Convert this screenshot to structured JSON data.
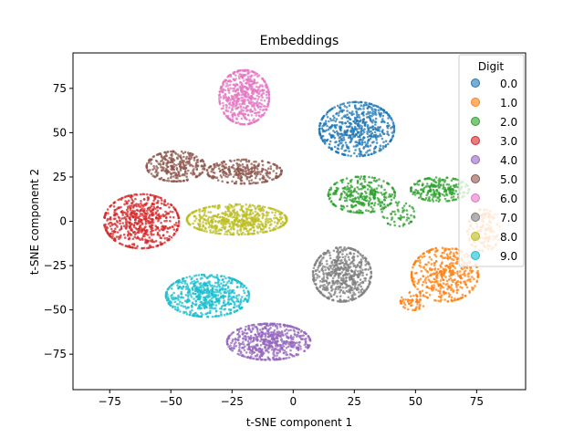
{
  "chart_data": {
    "type": "scatter",
    "title": "Embeddings",
    "xlabel": "t-SNE component 1",
    "ylabel": "t-SNE component 2",
    "xlim": [
      -90,
      95
    ],
    "ylim": [
      -95,
      95
    ],
    "xticks": [
      -75,
      -50,
      -25,
      0,
      25,
      50,
      75
    ],
    "yticks": [
      -75,
      -50,
      -25,
      0,
      25,
      50,
      75
    ],
    "grid": false,
    "legend": {
      "title": "Digit",
      "placement": "top-right",
      "entries": [
        "0.0",
        "1.0",
        "2.0",
        "3.0",
        "4.0",
        "5.0",
        "6.0",
        "7.0",
        "8.0",
        "9.0"
      ]
    },
    "series": [
      {
        "name": "0.0",
        "color": "#1f77b4",
        "clusters": [
          {
            "cx": 26,
            "cy": 52,
            "sx": 9,
            "sy": 9,
            "n": 600
          }
        ]
      },
      {
        "name": "1.0",
        "color": "#ff7f0e",
        "clusters": [
          {
            "cx": 62,
            "cy": -30,
            "sx": 8,
            "sy": 9,
            "n": 420
          },
          {
            "cx": 78,
            "cy": -5,
            "sx": 4,
            "sy": 7,
            "n": 130
          },
          {
            "cx": 49,
            "cy": -45,
            "sx": 3,
            "sy": 3,
            "n": 60
          }
        ]
      },
      {
        "name": "2.0",
        "color": "#2ca02c",
        "clusters": [
          {
            "cx": 28,
            "cy": 15,
            "sx": 8,
            "sy": 6,
            "n": 320
          },
          {
            "cx": 60,
            "cy": 18,
            "sx": 7,
            "sy": 4,
            "n": 240
          },
          {
            "cx": 43,
            "cy": 4,
            "sx": 4,
            "sy": 4,
            "n": 60
          }
        ]
      },
      {
        "name": "3.0",
        "color": "#d62728",
        "clusters": [
          {
            "cx": -62,
            "cy": 0,
            "sx": 9,
            "sy": 9,
            "n": 620
          }
        ]
      },
      {
        "name": "4.0",
        "color": "#9467bd",
        "clusters": [
          {
            "cx": -10,
            "cy": -68,
            "sx": 10,
            "sy": 6,
            "n": 620
          }
        ]
      },
      {
        "name": "5.0",
        "color": "#8c564b",
        "clusters": [
          {
            "cx": -48,
            "cy": 31,
            "sx": 7,
            "sy": 5,
            "n": 300
          },
          {
            "cx": -20,
            "cy": 28,
            "sx": 9,
            "sy": 4,
            "n": 300
          }
        ]
      },
      {
        "name": "6.0",
        "color": "#e377c2",
        "clusters": [
          {
            "cx": -20,
            "cy": 70,
            "sx": 6,
            "sy": 9,
            "n": 560
          }
        ]
      },
      {
        "name": "7.0",
        "color": "#7f7f7f",
        "clusters": [
          {
            "cx": 20,
            "cy": -30,
            "sx": 7,
            "sy": 9,
            "n": 580
          }
        ]
      },
      {
        "name": "8.0",
        "color": "#bcbd22",
        "clusters": [
          {
            "cx": -23,
            "cy": 1,
            "sx": 12,
            "sy": 5,
            "n": 620
          }
        ]
      },
      {
        "name": "9.0",
        "color": "#17becf",
        "clusters": [
          {
            "cx": -35,
            "cy": -42,
            "sx": 10,
            "sy": 7,
            "n": 600
          }
        ]
      }
    ]
  }
}
